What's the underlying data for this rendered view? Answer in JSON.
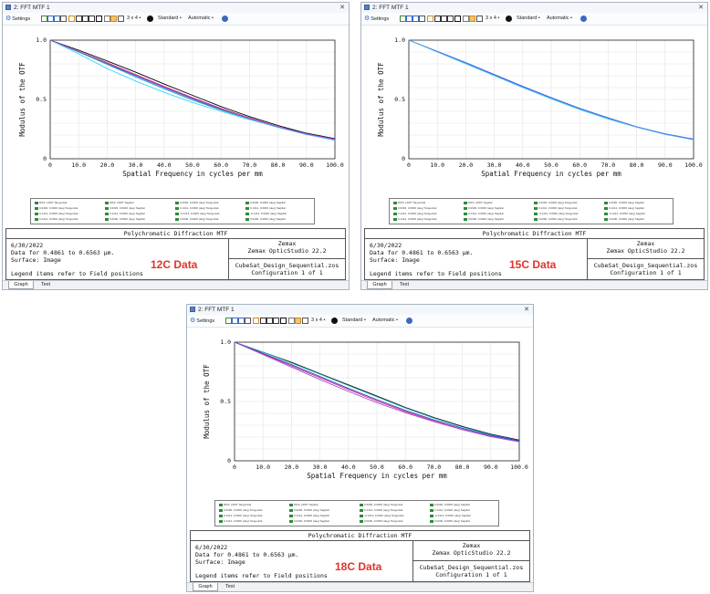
{
  "windows": [
    {
      "id": "w12",
      "title": "2: FFT MTF 1",
      "toolbar": {
        "settings": "Settings",
        "layout": "3 x 4 •",
        "standard": "Standard •",
        "automatic": "Automatic •"
      },
      "info": {
        "title": "Polychromatic Diffraction MTF",
        "date": "6/30/2022",
        "data_range": "Data for 0.4861 to 0.6563 μm.",
        "surface": "Surface: Image",
        "legend_note": "Legend items refer to Field positions",
        "company": "Zemax",
        "product": "Zemax OpticStudio 22.2",
        "file": "CubeSat_Design_Sequential.zos",
        "configuration": "Configuration 1 of 1"
      },
      "annotation": "12C Data",
      "tabs": [
        "Graph",
        "Text"
      ],
      "chart_data": {
        "type": "line",
        "xlabel": "Spatial Frequency in cycles per mm",
        "ylabel": "Modulus of the OTF",
        "xlim": [
          0,
          100
        ],
        "ylim": [
          0,
          1
        ],
        "xticks": [
          "0",
          "10.0",
          "20.0",
          "30.0",
          "40.0",
          "50.0",
          "60.0",
          "70.0",
          "80.0",
          "90.0",
          "100.0"
        ],
        "yticks": [
          "0",
          "0.5",
          "1.0"
        ],
        "x": [
          0,
          10,
          20,
          30,
          40,
          50,
          60,
          70,
          80,
          90,
          100
        ],
        "series": [
          {
            "color": "#000000",
            "values": [
              1.0,
              0.915,
              0.825,
              0.73,
              0.63,
              0.535,
              0.44,
              0.355,
              0.28,
              0.215,
              0.17
            ]
          },
          {
            "color": "#e0207a",
            "values": [
              1.0,
              0.905,
              0.81,
              0.71,
              0.61,
              0.515,
              0.425,
              0.345,
              0.27,
              0.21,
              0.165
            ]
          },
          {
            "color": "#1f3dd6",
            "values": [
              1.0,
              0.9,
              0.8,
              0.7,
              0.6,
              0.505,
              0.415,
              0.335,
              0.265,
              0.205,
              0.16
            ]
          },
          {
            "color": "#21b0a8",
            "values": [
              1.0,
              0.9,
              0.795,
              0.69,
              0.59,
              0.495,
              0.41,
              0.335,
              0.265,
              0.205,
              0.16
            ]
          },
          {
            "color": "#32d4ff",
            "values": [
              1.0,
              0.885,
              0.76,
              0.655,
              0.56,
              0.475,
              0.4,
              0.33,
              0.265,
              0.205,
              0.155
            ]
          },
          {
            "color": "#a04fd2",
            "values": [
              1.0,
              0.905,
              0.805,
              0.705,
              0.605,
              0.51,
              0.42,
              0.34,
              0.27,
              0.21,
              0.163
            ]
          }
        ]
      }
    },
    {
      "id": "w15",
      "title": "2: FFT MTF 1",
      "toolbar": {
        "settings": "Settings",
        "layout": "3 x 4 •",
        "standard": "Standard •",
        "automatic": "Automatic •"
      },
      "info": {
        "title": "Polychromatic Diffraction MTF",
        "date": "6/30/2022",
        "data_range": "Data for 0.4861 to 0.6563 μm.",
        "surface": "Surface: Image",
        "legend_note": "Legend items refer to Field positions",
        "company": "Zemax",
        "product": "Zemax OpticStudio 22.2",
        "file": "CubeSat_Design_Sequential.zos",
        "configuration": "Configuration 1 of 1"
      },
      "annotation": "15C Data",
      "tabs": [
        "Graph",
        "Text"
      ],
      "chart_data": {
        "type": "line",
        "xlabel": "Spatial Frequency in cycles per mm",
        "ylabel": "Modulus of the OTF",
        "xlim": [
          0,
          100
        ],
        "ylim": [
          0,
          1
        ],
        "xticks": [
          "0",
          "10.0",
          "20.0",
          "30.0",
          "40.0",
          "50.0",
          "60.0",
          "70.0",
          "80.0",
          "90.0",
          "100.0"
        ],
        "yticks": [
          "0",
          "0.5",
          "1.0"
        ],
        "x": [
          0,
          10,
          20,
          30,
          40,
          50,
          60,
          70,
          80,
          90,
          100
        ],
        "series": [
          {
            "color": "#1f3dd6",
            "values": [
              1.0,
              0.905,
              0.81,
              0.71,
              0.61,
              0.515,
              0.425,
              0.345,
              0.27,
              0.21,
              0.165
            ]
          },
          {
            "color": "#32d4ff",
            "values": [
              1.0,
              0.9,
              0.8,
              0.7,
              0.6,
              0.505,
              0.415,
              0.335,
              0.265,
              0.205,
              0.16
            ]
          },
          {
            "color": "#5aa0e6",
            "values": [
              1.0,
              0.902,
              0.805,
              0.705,
              0.605,
              0.51,
              0.42,
              0.34,
              0.268,
              0.207,
              0.162
            ]
          }
        ]
      }
    },
    {
      "id": "w18",
      "title": "2: FFT MTF 1",
      "toolbar": {
        "settings": "Settings",
        "layout": "3 x 4 •",
        "standard": "Standard •",
        "automatic": "Automatic •"
      },
      "info": {
        "title": "Polychromatic Diffraction MTF",
        "date": "6/30/2022",
        "data_range": "Data for 0.4861 to 0.6563 μm.",
        "surface": "Surface: Image",
        "legend_note": "Legend items refer to Field positions",
        "company": "Zemax",
        "product": "Zemax OpticStudio 22.2",
        "file": "CubeSat_Design_Sequential.zos",
        "configuration": "Configuration 1 of 1"
      },
      "annotation": "18C Data",
      "tabs": [
        "Graph",
        "Text"
      ],
      "chart_data": {
        "type": "line",
        "xlabel": "Spatial Frequency in cycles per mm",
        "ylabel": "Modulus of the OTF",
        "xlim": [
          0,
          100
        ],
        "ylim": [
          0,
          1
        ],
        "xticks": [
          "0",
          "10.0",
          "20.0",
          "30.0",
          "40.0",
          "50.0",
          "60.0",
          "70.0",
          "80.0",
          "90.0",
          "100.0"
        ],
        "yticks": [
          "0",
          "0.5",
          "1.0"
        ],
        "x": [
          0,
          10,
          20,
          30,
          40,
          50,
          60,
          70,
          80,
          90,
          100
        ],
        "series": [
          {
            "color": "#000000",
            "values": [
              1.0,
              0.915,
              0.83,
              0.735,
              0.64,
              0.545,
              0.45,
              0.365,
              0.29,
              0.225,
              0.175
            ]
          },
          {
            "color": "#21b0a8",
            "values": [
              1.0,
              0.915,
              0.825,
              0.73,
              0.635,
              0.54,
              0.445,
              0.36,
              0.285,
              0.22,
              0.17
            ]
          },
          {
            "color": "#1f3dd6",
            "values": [
              1.0,
              0.905,
              0.81,
              0.71,
              0.61,
              0.515,
              0.425,
              0.345,
              0.275,
              0.213,
              0.168
            ]
          },
          {
            "color": "#e0207a",
            "values": [
              1.0,
              0.9,
              0.8,
              0.7,
              0.6,
              0.505,
              0.415,
              0.335,
              0.265,
              0.205,
              0.162
            ]
          },
          {
            "color": "#a04fd2",
            "values": [
              1.0,
              0.895,
              0.79,
              0.685,
              0.585,
              0.49,
              0.405,
              0.33,
              0.262,
              0.203,
              0.16
            ]
          }
        ]
      }
    }
  ],
  "legend_entries": [
    [
      "DIFF. LIMIT Tangential",
      "DIFF. LIMIT Sagittal",
      "0.0000, 0.0000 (deg) Tangential",
      "0.0000, 0.0000 (deg) Sagittal"
    ],
    [
      "0.0000, 0.0000 (deg) Tangential",
      "0.0000, 0.0000 (deg) Sagittal",
      "0.1414, 0.0000 (deg) Tangential",
      "0.1414, 0.0000 (deg) Sagittal"
    ],
    [
      "0.1414, 0.0000 (deg) Tangential",
      "0.1414, 0.0000 (deg) Sagittal",
      "-0.1414, 0.0000 (deg) Tangential",
      "-0.1414, 0.0000 (deg) Sagittal"
    ],
    [
      "0.1414, 0.0000 (deg) Tangential",
      "0.0000, 0.0000 (deg) Sagittal",
      "0.0000, 0.0000 (deg) Tangential",
      "0.0000, 0.0000 (deg) Sagittal"
    ]
  ],
  "colors": {
    "title_bar": "#f3f6fa",
    "border": "#a9b4c2",
    "annotation": "#e0342a",
    "legend_swatch": "#2d8a3c"
  }
}
